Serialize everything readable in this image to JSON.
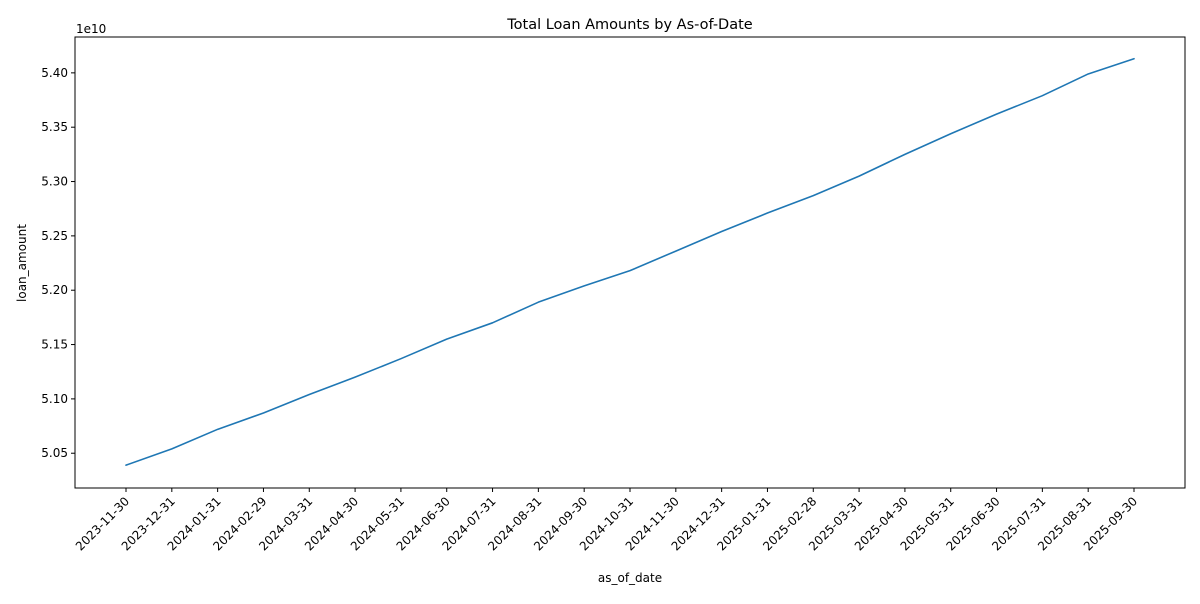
{
  "chart_data": {
    "type": "line",
    "title": "Total Loan Amounts by As-of-Date",
    "xlabel": "as_of_date",
    "ylabel": "loan_amount",
    "y_offset_label": "1e10",
    "y_scale": 10000000000.0,
    "categories": [
      "2023-11-30",
      "2023-12-31",
      "2024-01-31",
      "2024-02-29",
      "2024-03-31",
      "2024-04-30",
      "2024-05-31",
      "2024-06-30",
      "2024-07-31",
      "2024-08-31",
      "2024-09-30",
      "2024-10-31",
      "2024-11-30",
      "2024-12-31",
      "2025-01-31",
      "2025-02-28",
      "2025-03-31",
      "2025-04-30",
      "2025-05-31",
      "2025-06-30",
      "2025-07-31",
      "2025-08-31",
      "2025-09-30"
    ],
    "series": [
      {
        "values": [
          50390000000,
          50540000000,
          50720000000,
          50870000000,
          51040000000,
          51200000000,
          51370000000,
          51550000000,
          51700000000,
          51890000000,
          52040000000,
          52180000000,
          52360000000,
          52540000000,
          52710000000,
          52870000000,
          53050000000,
          53250000000,
          53440000000,
          53620000000,
          53790000000,
          53990000000,
          54130000000
        ],
        "color": "#1f77b4"
      }
    ],
    "yticks": [
      5.05,
      5.1,
      5.15,
      5.2,
      5.25,
      5.3,
      5.35,
      5.4
    ],
    "ytick_labels": [
      "5.05",
      "5.10",
      "5.15",
      "5.20",
      "5.25",
      "5.30",
      "5.35",
      "5.40"
    ],
    "ylim": [
      50180000000,
      54330000000
    ],
    "grid": false,
    "legend": "none"
  }
}
